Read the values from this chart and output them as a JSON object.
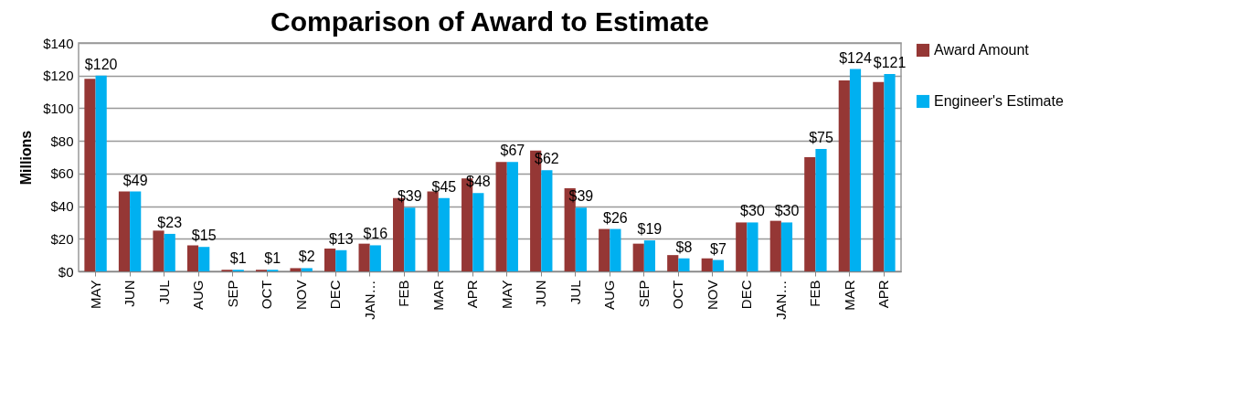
{
  "chart_data": {
    "type": "bar",
    "title": "Comparison of Award to Estimate",
    "ylabel": "Millions",
    "categories": [
      "MAY",
      "JUN",
      "JUL",
      "AUG",
      "SEP",
      "OCT",
      "NOV",
      "DEC",
      "JAN…",
      "FEB",
      "MAR",
      "APR",
      "MAY",
      "JUN",
      "JUL",
      "AUG",
      "SEP",
      "OCT",
      "NOV",
      "DEC",
      "JAN…",
      "FEB",
      "MAR",
      "APR"
    ],
    "series": [
      {
        "name": "Award Amount",
        "color": "#953735",
        "values": [
          118,
          49,
          25,
          16,
          1,
          1,
          2,
          14,
          17,
          45,
          49,
          57,
          67,
          74,
          51,
          26,
          17,
          10,
          8,
          30,
          31,
          70,
          117,
          116
        ]
      },
      {
        "name": "Engineer's Estimate",
        "color": "#00b0f0",
        "values": [
          120,
          49,
          23,
          15,
          1,
          1,
          2,
          13,
          16,
          39,
          45,
          48,
          67,
          62,
          39,
          26,
          19,
          8,
          7,
          30,
          30,
          75,
          124,
          121
        ],
        "value_labels": [
          "$120",
          "$49",
          "$23",
          "$15",
          "$1",
          "$1",
          "$2",
          "$13",
          "$16",
          "$39",
          "$45",
          "$48",
          "$67",
          "$62",
          "$39",
          "$26",
          "$19",
          "$8",
          "$7",
          "$30",
          "$30",
          "$75",
          "$124",
          "$121"
        ]
      }
    ],
    "ylim": [
      0,
      140
    ],
    "yticks": [
      {
        "value": 0,
        "label": "$0"
      },
      {
        "value": 20,
        "label": "$20"
      },
      {
        "value": 40,
        "label": "$40"
      },
      {
        "value": 60,
        "label": "$60"
      },
      {
        "value": 80,
        "label": "$80"
      },
      {
        "value": 100,
        "label": "$100"
      },
      {
        "value": 120,
        "label": "$120"
      },
      {
        "value": 140,
        "label": "$140"
      }
    ],
    "grid": "y",
    "legend": "right"
  }
}
